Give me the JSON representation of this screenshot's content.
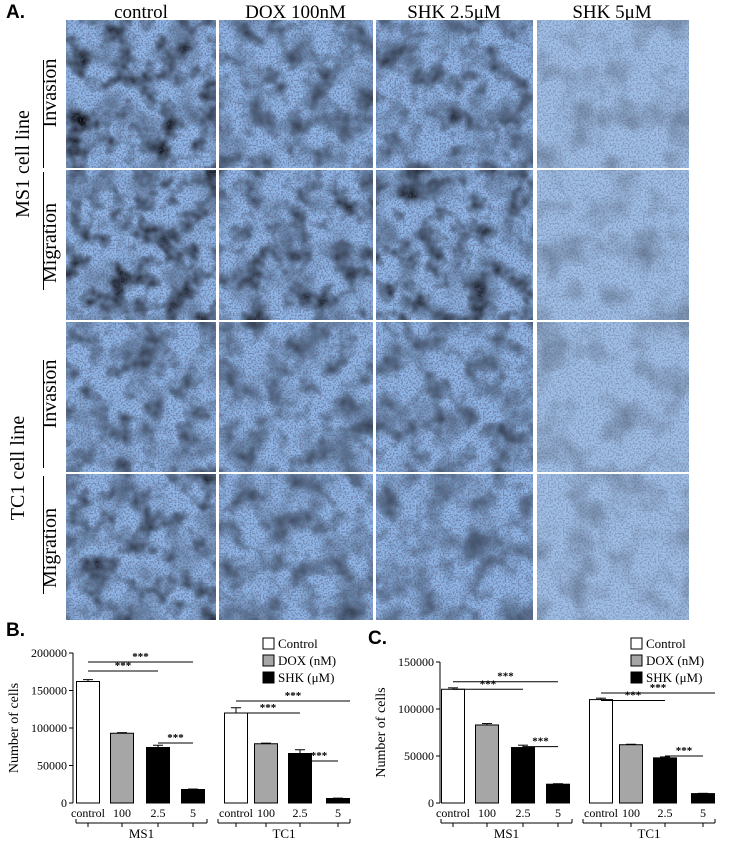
{
  "figure": {
    "panel_a": "A.",
    "panel_b": "B.",
    "panel_c": "C.",
    "columns": [
      "control",
      "DOX 100nM",
      "SHK 2.5μM",
      "SHK 5μM"
    ],
    "cell_lines": [
      "MS1 cell line",
      "TC1 cell line"
    ],
    "assays": [
      "Invasion",
      "Migration"
    ],
    "stain_colors": {
      "dark": "#1f23b8",
      "mid": "#3b5fe0",
      "light": "#8fb6e6"
    }
  },
  "chart_data": [
    {
      "type": "bar",
      "panel": "B.",
      "ylabel": "Number of cells",
      "ylim": [
        0,
        200000
      ],
      "yticks": [
        "0",
        "50000",
        "100000",
        "150000",
        "200000"
      ],
      "categories": [
        "control",
        "100",
        "2.5",
        "5",
        "control",
        "100",
        "2.5",
        "5"
      ],
      "groups": [
        "MS1",
        "TC1"
      ],
      "values": [
        162000,
        93000,
        74000,
        18000,
        120000,
        79000,
        66000,
        6000
      ],
      "errors": [
        2500,
        800,
        3000,
        600,
        7000,
        800,
        5000,
        500
      ],
      "colors": [
        "#ffffff",
        "#a6a6a6",
        "#000000",
        "#000000",
        "#ffffff",
        "#a6a6a6",
        "#000000",
        "#000000"
      ],
      "legend": [
        "Control",
        "DOX (nM)",
        "SHK (μM)"
      ],
      "legend_colors": [
        "#ffffff",
        "#a6a6a6",
        "#000000"
      ],
      "legend_position": "top-right",
      "significance": [
        "***",
        "***",
        "***",
        "***",
        "***",
        "***"
      ]
    },
    {
      "type": "bar",
      "panel": "C.",
      "ylabel": "Number of cells",
      "ylim": [
        0,
        150000
      ],
      "yticks": [
        "0",
        "50000",
        "100000",
        "150000"
      ],
      "categories": [
        "control",
        "100",
        "2.5",
        "5",
        "control",
        "100",
        "2.5",
        "5"
      ],
      "groups": [
        "MS1",
        "TC1"
      ],
      "values": [
        121000,
        83000,
        59000,
        20000,
        110000,
        62000,
        48000,
        10000
      ],
      "errors": [
        1500,
        1500,
        2500,
        500,
        1500,
        500,
        1000,
        300
      ],
      "colors": [
        "#ffffff",
        "#a6a6a6",
        "#000000",
        "#000000",
        "#ffffff",
        "#a6a6a6",
        "#000000",
        "#000000"
      ],
      "legend": [
        "Control",
        "DOX (nM)",
        "SHK (μM)"
      ],
      "legend_colors": [
        "#ffffff",
        "#a6a6a6",
        "#000000"
      ],
      "legend_position": "top-right",
      "significance": [
        "***",
        "***",
        "***",
        "***",
        "***",
        "***"
      ]
    }
  ]
}
